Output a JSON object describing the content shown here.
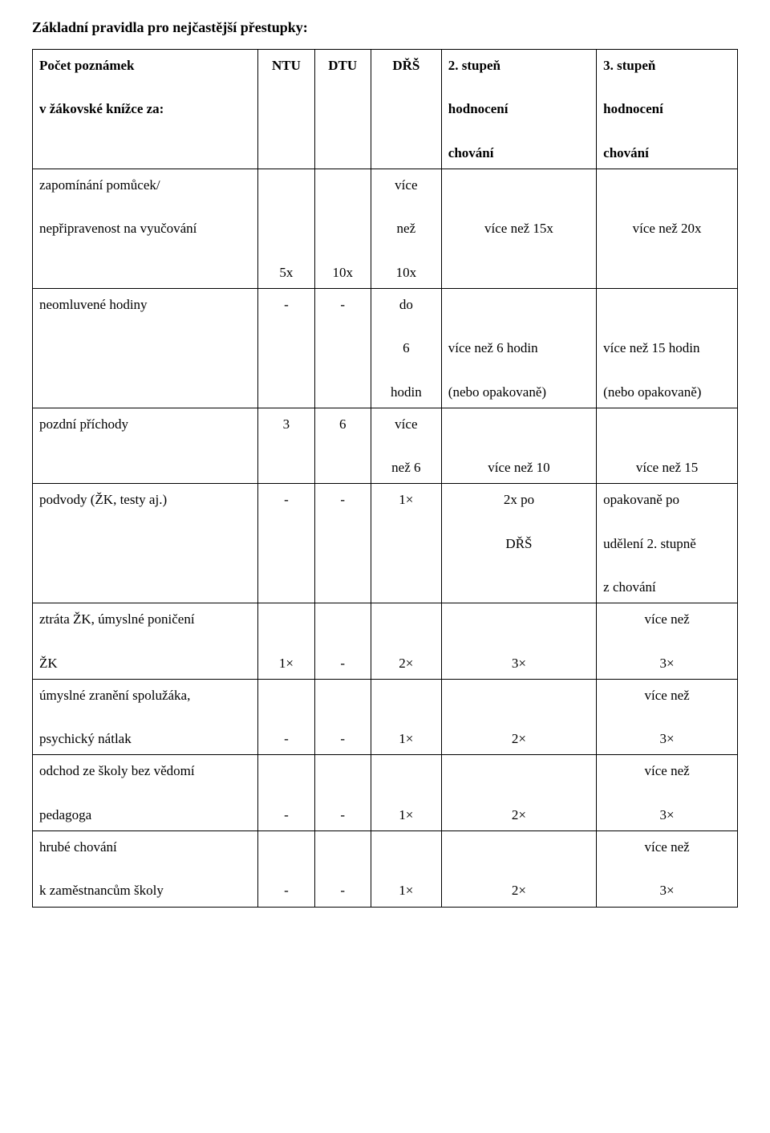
{
  "title": "Základní pravidla pro nejčastější přestupky:",
  "header": {
    "label_line1": "Počet poznámek",
    "label_line2": "v žákovské knížce za:",
    "ntu": "NTU",
    "dtu": "DTU",
    "drs": "DŘŠ",
    "s2_line1": "2. stupeň",
    "s2_line2": "hodnocení",
    "s2_line3": "chování",
    "s3_line1": "3. stupeň",
    "s3_line2": "hodnocení",
    "s3_line3": "chování"
  },
  "rows": {
    "r1": {
      "label_line1": "zapomínání pomůcek/",
      "label_line2": "nepřipravenost na vyučování",
      "ntu": "5x",
      "dtu": "10x",
      "drs_line1": "více",
      "drs_line2": "než",
      "drs_line3": "10x",
      "s2": "více než 15x",
      "s3": "více než 20x"
    },
    "r2": {
      "label": "neomluvené hodiny",
      "ntu": "-",
      "dtu": "-",
      "drs_line1": "do",
      "drs_line2": "6",
      "drs_line3": "hodin",
      "s2_line1": "více než 6 hodin",
      "s2_line2": "(nebo opakovaně)",
      "s3_line1": "více než 15 hodin",
      "s3_line2": "(nebo opakovaně)"
    },
    "r3": {
      "label": "pozdní příchody",
      "ntu": "3",
      "dtu": "6",
      "drs_line1": "více",
      "drs_line2": "než 6",
      "s2": "více než 10",
      "s3": "více než 15"
    },
    "r4": {
      "label": "podvody (ŽK, testy aj.)",
      "ntu": "-",
      "dtu": "-",
      "drs": "1×",
      "s2_line1": "2x po",
      "s2_line2": "DŘŠ",
      "s3_line1": "opakovaně po",
      "s3_line2": "udělení 2. stupně",
      "s3_line3": "z chování"
    },
    "r5": {
      "label_line1": "ztráta ŽK, úmyslné poničení",
      "label_line2": "ŽK",
      "ntu": "1×",
      "dtu": "-",
      "drs": "2×",
      "s2": "3×",
      "s3_line1": "více než",
      "s3_line2": "3×"
    },
    "r6": {
      "label_line1": "úmyslné zranění spolužáka,",
      "label_line2": "psychický nátlak",
      "ntu": "-",
      "dtu": "-",
      "drs": "1×",
      "s2": "2×",
      "s3_line1": "více než",
      "s3_line2": "3×"
    },
    "r7": {
      "label_line1": "odchod ze školy bez vědomí",
      "label_line2": "pedagoga",
      "ntu": "-",
      "dtu": "-",
      "drs": "1×",
      "s2": "2×",
      "s3_line1": "více než",
      "s3_line2": "3×"
    },
    "r8": {
      "label_line1": "hrubé chování",
      "label_line2": "k zaměstnancům školy",
      "ntu": "-",
      "dtu": "-",
      "drs": "1×",
      "s2": "2×",
      "s3_line1": "více než",
      "s3_line2": "3×"
    }
  }
}
